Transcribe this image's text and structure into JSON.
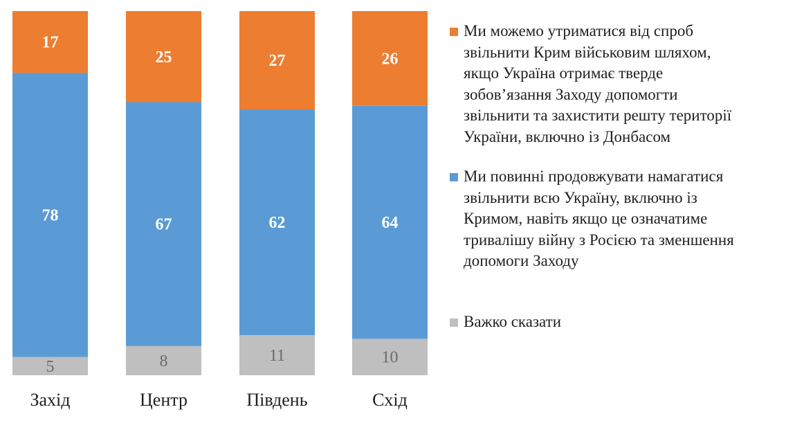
{
  "chart_data": {
    "type": "bar",
    "stacked": true,
    "normalized_percent": true,
    "categories": [
      "Захід",
      "Центр",
      "Південь",
      "Схід"
    ],
    "series": [
      {
        "name": "Важко сказати",
        "color": "#bfbfbf",
        "label_color": "#6b6b6b",
        "values": [
          5,
          8,
          11,
          10
        ]
      },
      {
        "name": "Ми повинні продовжувати намагатися звільнити всю Україну, включно із Кримом, навіть якщо це означатиме тривалішу війну з Росією та зменшення допомоги Заходу",
        "color": "#5b9bd5",
        "label_color": "#ffffff",
        "values": [
          78,
          67,
          62,
          64
        ]
      },
      {
        "name": "Ми можемо утриматися від спроб звільнити Крим військовим шляхом, якщо Україна отримає тверде зобов’язання Заходу допомогти звільнити та захистити решту території України, включно із Донбасом",
        "color": "#ed7d31",
        "label_color": "#ffffff",
        "values": [
          17,
          25,
          27,
          26
        ]
      }
    ],
    "title": "",
    "xlabel": "",
    "ylabel": "",
    "ylim": [
      0,
      100
    ],
    "grid": false,
    "legend_position": "right"
  },
  "legend": [
    {
      "lines": [
        "Ми можемо утриматися від спроб",
        "звільнити Крим військовим шляхом,",
        "якщо Україна отримає тверде",
        "зобов’язання Заходу допомогти",
        "звільнити та захистити решту території",
        "України, включно із Донбасом"
      ],
      "color": "#ed7d31"
    },
    {
      "lines": [
        "Ми повинні продовжувати намагатися",
        "звільнити всю Україну, включно із",
        "Кримом, навіть якщо це означатиме",
        "тривалішу війну з Росією та зменшення",
        "допомоги Заходу"
      ],
      "color": "#5b9bd5"
    },
    {
      "lines": [
        "Важко сказати"
      ],
      "color": "#bfbfbf"
    }
  ]
}
